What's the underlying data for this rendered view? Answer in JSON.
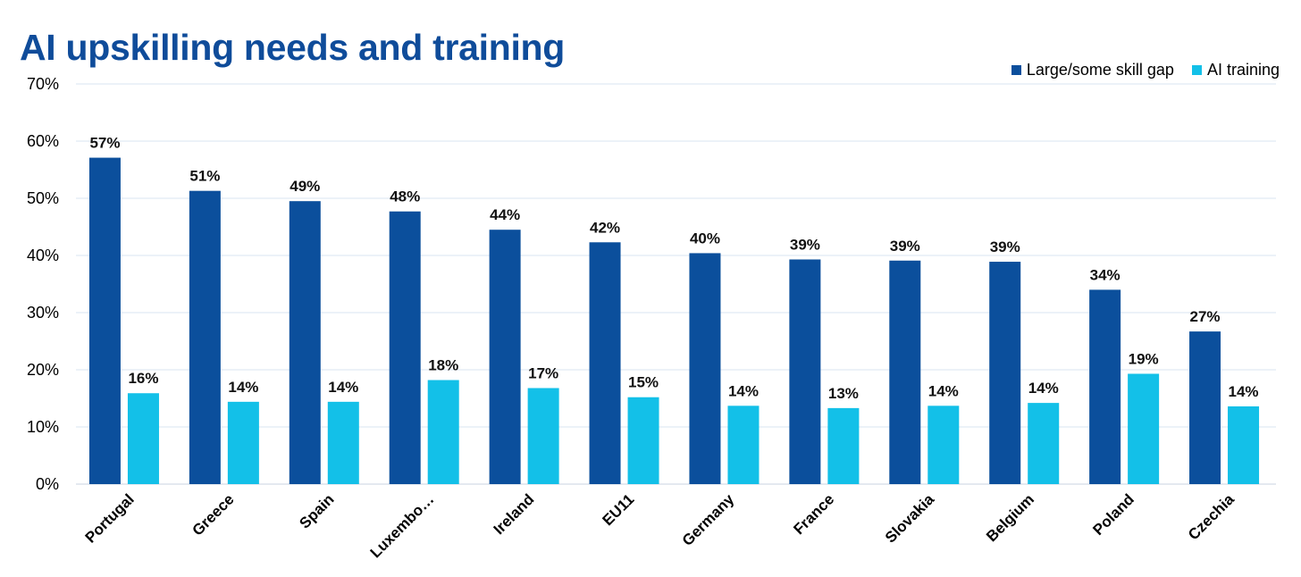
{
  "chart_data": {
    "type": "bar",
    "title": "AI upskilling needs and training",
    "categories": [
      "Portugal",
      "Greece",
      "Spain",
      "Luxembo…",
      "Ireland",
      "EU11",
      "Germany",
      "France",
      "Slovakia",
      "Belgium",
      "Poland",
      "Czechia"
    ],
    "series": [
      {
        "name": "Large/some skill gap",
        "color": "#0B4F9C",
        "values": [
          57.1,
          51.3,
          49.5,
          47.7,
          44.5,
          42.3,
          40.4,
          39.3,
          39.1,
          38.9,
          34.0,
          26.7
        ],
        "labels": [
          "57%",
          "51%",
          "49%",
          "48%",
          "44%",
          "42%",
          "40%",
          "39%",
          "39%",
          "39%",
          "34%",
          "27%"
        ]
      },
      {
        "name": "AI training",
        "color": "#13C0E8",
        "values": [
          15.9,
          14.4,
          14.4,
          18.2,
          16.8,
          15.2,
          13.7,
          13.3,
          13.7,
          14.2,
          19.3,
          13.6
        ],
        "labels": [
          "16%",
          "14%",
          "14%",
          "18%",
          "17%",
          "15%",
          "14%",
          "13%",
          "14%",
          "14%",
          "19%",
          "14%"
        ]
      }
    ],
    "yticks": [
      "0%",
      "10%",
      "20%",
      "30%",
      "40%",
      "50%",
      "60%",
      "70%"
    ],
    "ylim": [
      0,
      70
    ],
    "grid": true,
    "legend_position": "top-right"
  }
}
